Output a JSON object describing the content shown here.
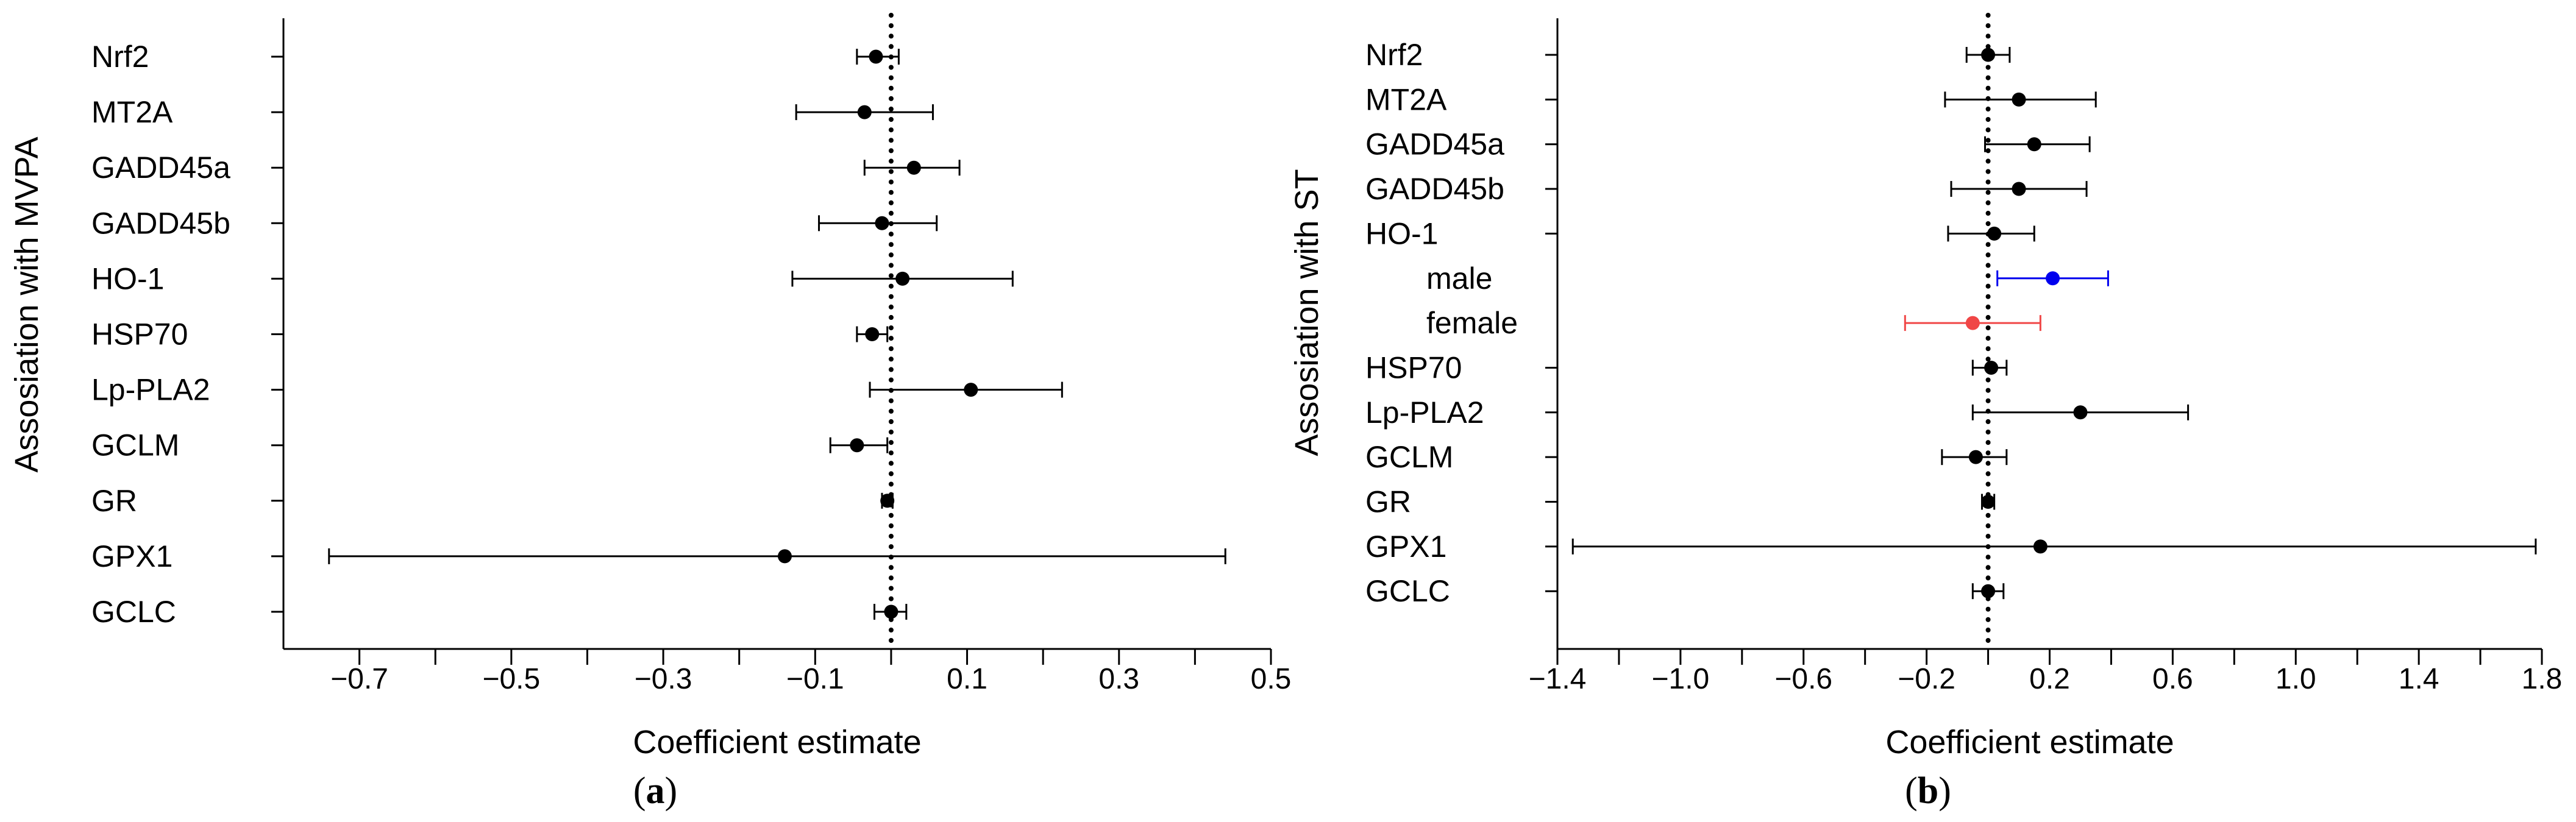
{
  "colors": {
    "default": "#000000",
    "male": "#0000ee",
    "female": "#f04646"
  },
  "chart_data": [
    {
      "type": "forest",
      "panel_label": "a",
      "xlabel": "Coefficient estimate",
      "ylabel": "Assosiation with MVPA",
      "xlim": [
        -0.8,
        0.5
      ],
      "xticks": [
        -0.7,
        -0.5,
        -0.3,
        -0.1,
        0.1,
        0.3,
        0.5
      ],
      "xtick_labels": [
        "−0.7",
        "−0.5",
        "−0.3",
        "−0.1",
        "0.1",
        "0.3",
        "0.5"
      ],
      "reference_line": 0,
      "rows": [
        {
          "label": "Nrf2",
          "estimate": -0.02,
          "lower": -0.045,
          "upper": 0.01
        },
        {
          "label": "MT2A",
          "estimate": -0.035,
          "lower": -0.125,
          "upper": 0.055
        },
        {
          "label": "GADD45a",
          "estimate": 0.03,
          "lower": -0.035,
          "upper": 0.09
        },
        {
          "label": "GADD45b",
          "estimate": -0.012,
          "lower": -0.095,
          "upper": 0.06
        },
        {
          "label": "HO-1",
          "estimate": 0.015,
          "lower": -0.13,
          "upper": 0.16
        },
        {
          "label": "HSP70",
          "estimate": -0.025,
          "lower": -0.045,
          "upper": -0.005
        },
        {
          "label": "Lp-PLA2",
          "estimate": 0.105,
          "lower": -0.028,
          "upper": 0.225
        },
        {
          "label": "GCLM",
          "estimate": -0.045,
          "lower": -0.08,
          "upper": -0.005
        },
        {
          "label": "GR",
          "estimate": -0.005,
          "lower": -0.012,
          "upper": 0.002
        },
        {
          "label": "GPX1",
          "estimate": -0.14,
          "lower": -0.74,
          "upper": 0.44
        },
        {
          "label": "GCLC",
          "estimate": 0.0,
          "lower": -0.022,
          "upper": 0.02
        }
      ]
    },
    {
      "type": "forest",
      "panel_label": "b",
      "xlabel": "Coefficient estimate",
      "ylabel": "Assosiation with ST",
      "xlim": [
        -1.4,
        1.8
      ],
      "xticks": [
        -1.4,
        -1.0,
        -0.6,
        -0.2,
        0.2,
        0.6,
        1.0,
        1.4,
        1.8
      ],
      "xtick_labels": [
        "−1.4",
        "−1.0",
        "−0.6",
        "−0.2",
        "0.2",
        "0.6",
        "1.0",
        "1.4",
        "1.8"
      ],
      "reference_line": 0,
      "rows": [
        {
          "label": "Nrf2",
          "estimate": 0.0,
          "lower": -0.07,
          "upper": 0.07
        },
        {
          "label": "MT2A",
          "estimate": 0.1,
          "lower": -0.14,
          "upper": 0.35
        },
        {
          "label": "GADD45a",
          "estimate": 0.15,
          "lower": -0.01,
          "upper": 0.33
        },
        {
          "label": "GADD45b",
          "estimate": 0.1,
          "lower": -0.12,
          "upper": 0.32
        },
        {
          "label": "HO-1",
          "estimate": 0.02,
          "lower": -0.13,
          "upper": 0.15
        },
        {
          "label": "male",
          "estimate": 0.21,
          "lower": 0.03,
          "upper": 0.39,
          "color": "male",
          "indent": true
        },
        {
          "label": "female",
          "estimate": -0.05,
          "lower": -0.27,
          "upper": 0.17,
          "color": "female",
          "indent": true
        },
        {
          "label": "HSP70",
          "estimate": 0.01,
          "lower": -0.05,
          "upper": 0.06
        },
        {
          "label": "Lp-PLA2",
          "estimate": 0.3,
          "lower": -0.05,
          "upper": 0.65
        },
        {
          "label": "GCLM",
          "estimate": -0.04,
          "lower": -0.15,
          "upper": 0.06
        },
        {
          "label": "GR",
          "estimate": 0.0,
          "lower": -0.02,
          "upper": 0.02
        },
        {
          "label": "GPX1",
          "estimate": 0.17,
          "lower": -1.35,
          "upper": 1.78
        },
        {
          "label": "GCLC",
          "estimate": 0.0,
          "lower": -0.05,
          "upper": 0.05
        }
      ]
    }
  ]
}
